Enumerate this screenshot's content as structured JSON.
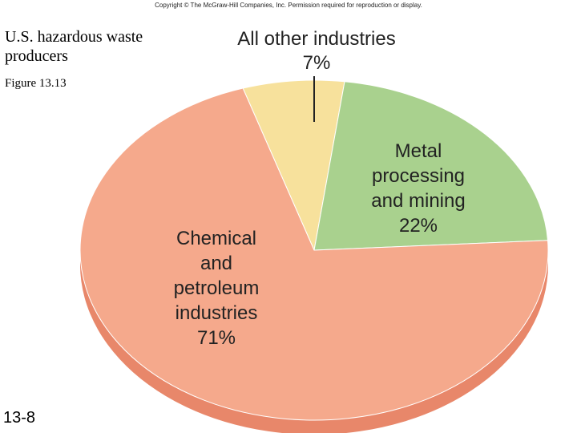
{
  "header": {
    "copyright": "Copyright © The McGraw-Hill Companies, Inc. Permission required for reproduction or display."
  },
  "slide": {
    "title": "U.S. hazardous waste producers",
    "figure": "Figure 13.13",
    "number": "13-8"
  },
  "chart_data": {
    "type": "pie",
    "title": "",
    "unit": "%",
    "slices": [
      {
        "lines": [
          "All other industries",
          "7%"
        ],
        "value": 7,
        "color": "#f7e19c"
      },
      {
        "lines": [
          "Metal",
          "processing",
          "and mining",
          "22%"
        ],
        "value": 22,
        "color": "#a9d18e"
      },
      {
        "lines": [
          "Chemical",
          "and",
          "petroleum",
          "industries",
          "71%"
        ],
        "value": 71,
        "color": "#f5a98c"
      }
    ],
    "legend": "none",
    "style": "3d-tilted"
  }
}
